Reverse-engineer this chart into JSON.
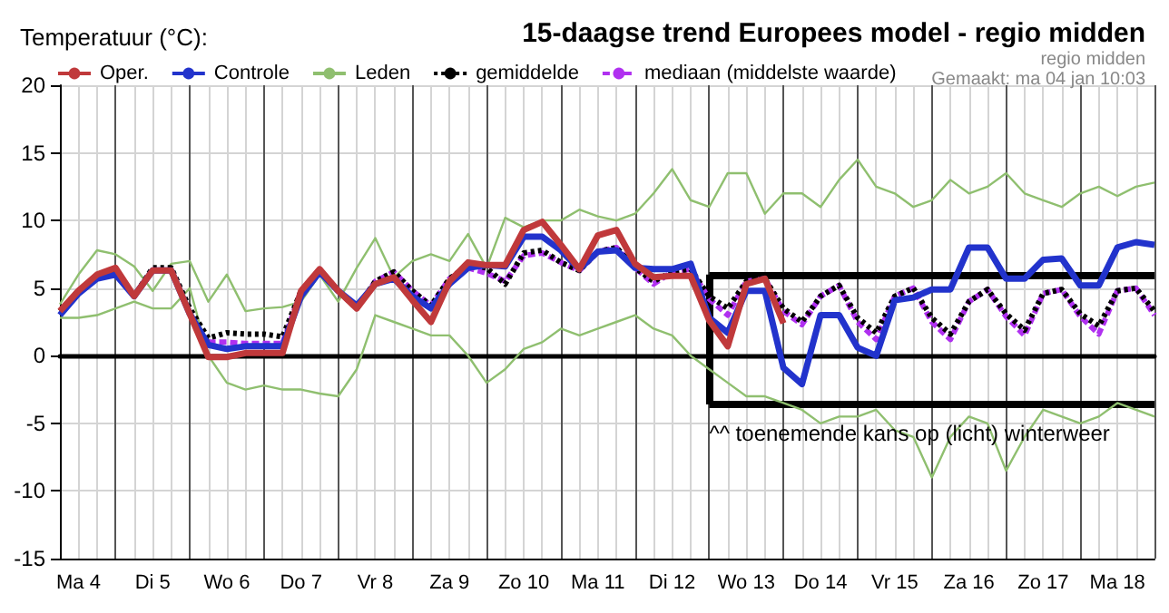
{
  "chart_data": {
    "type": "line",
    "title": "15-daagse trend Europees model - regio midden",
    "ylabel": "Temperatuur (°C):",
    "annotations": [
      "regio midden",
      "Gemaakt: ma 04 jan 10:03",
      {
        "text": "^^ toenemende kans op (licht) winterweer",
        "y": -3.6
      }
    ],
    "categories": [
      null,
      "Ma 4",
      null,
      null,
      null,
      "Di 5",
      null,
      null,
      null,
      "Wo 6",
      null,
      null,
      null,
      "Do 7",
      null,
      null,
      null,
      "Vr 8",
      null,
      null,
      null,
      "Za 9",
      null,
      null,
      null,
      "Zo 10",
      null,
      null,
      null,
      "Ma 11",
      null,
      null,
      null,
      "Di 12",
      null,
      null,
      null,
      "Wo 13",
      null,
      null,
      null,
      "Do 14",
      null,
      null,
      null,
      "Vr 15",
      null,
      null,
      null,
      "Za 16",
      null,
      null,
      null,
      "Zo 17",
      null,
      null,
      null,
      "Ma 18",
      null,
      null
    ],
    "ylim": [
      -15,
      20
    ],
    "yticks": [
      -15,
      -10,
      -5,
      0,
      5,
      10,
      15,
      20
    ],
    "grid": true,
    "legend": "top left",
    "marker": "none",
    "ref_lines": [
      {
        "axis": "y",
        "value": 6
      },
      {
        "axis": "y",
        "value": -3.6
      }
    ],
    "series": [
      {
        "name": "Oper.",
        "color": "#c0393b",
        "line_style": "solid",
        "values": [
          3.3,
          4.8,
          6.0,
          6.5,
          4.4,
          6.3,
          6.3,
          3.1,
          -0.1,
          -0.1,
          0.2,
          0.2,
          0.2,
          4.8,
          6.4,
          4.8,
          3.5,
          5.3,
          5.8,
          4.1,
          2.5,
          5.5,
          6.9,
          6.7,
          6.7,
          9.3,
          9.9,
          8.2,
          6.4,
          8.9,
          9.3,
          6.8,
          5.8,
          5.9,
          5.9,
          2.6,
          0.7,
          5.3,
          5.7,
          2.4,
          null,
          null,
          null,
          null,
          null,
          null,
          null,
          null,
          null,
          null,
          null,
          null,
          null,
          null,
          null,
          null,
          null,
          null,
          null,
          null
        ]
      },
      {
        "name": "Controle",
        "color": "#2233cc",
        "line_style": "solid",
        "values": [
          3.0,
          4.6,
          5.7,
          6.0,
          4.4,
          6.3,
          6.3,
          3.1,
          0.8,
          0.5,
          0.7,
          0.7,
          0.7,
          4.4,
          6.2,
          4.8,
          3.7,
          5.3,
          5.7,
          4.4,
          3.5,
          5.3,
          6.5,
          6.7,
          6.6,
          8.8,
          8.8,
          7.8,
          6.4,
          7.7,
          7.8,
          6.5,
          6.4,
          6.4,
          6.8,
          2.8,
          1.7,
          4.8,
          4.8,
          -0.9,
          -2.1,
          3.0,
          3.0,
          0.6,
          0.0,
          4.1,
          4.3,
          4.9,
          4.9,
          8.0,
          8.0,
          5.7,
          5.7,
          7.1,
          7.2,
          5.2,
          5.2,
          8.0,
          8.4,
          8.2
        ]
      },
      {
        "name": "Leden",
        "color": "#8fbf6f",
        "line_style": "solid",
        "values": [
          3.8,
          6.0,
          7.8,
          7.5,
          6.6,
          4.8,
          6.8,
          7.0,
          4.0,
          6.0,
          3.3,
          3.5,
          3.6,
          4.0,
          6.0,
          4.0,
          6.5,
          8.7,
          5.8,
          7.0,
          7.5,
          7.0,
          9.0,
          6.5,
          10.2,
          9.5,
          10.0,
          10.0,
          10.8,
          10.3,
          10.0,
          10.5,
          12.0,
          13.8,
          11.5,
          11.0,
          13.5,
          13.5,
          10.5,
          12.0,
          12.0,
          11.0,
          13.0,
          14.5,
          12.5,
          12.0,
          11.0,
          11.5,
          13.0,
          12.0,
          12.5,
          13.5,
          12.0,
          11.5,
          11.0,
          12.0,
          12.5,
          11.8,
          12.5,
          12.8
        ]
      },
      {
        "color": "#8fbf6f",
        "line_style": "solid",
        "values": [
          2.8,
          2.8,
          3.0,
          3.5,
          4.0,
          3.5,
          3.5,
          5.0,
          0.0,
          -2.0,
          -2.5,
          -2.2,
          -2.5,
          -2.5,
          -2.8,
          -3.0,
          -1.0,
          3.0,
          2.5,
          2.0,
          1.5,
          1.5,
          0.0,
          -2.0,
          -1.0,
          0.5,
          1.0,
          2.0,
          1.5,
          2.0,
          2.5,
          3.0,
          2.0,
          1.5,
          0.0,
          -1.0,
          -2.0,
          -3.0,
          -3.0,
          -3.5,
          -4.0,
          -5.0,
          -4.5,
          -4.5,
          -4.0,
          -5.5,
          -6.0,
          -9.0,
          -6.0,
          -4.5,
          -5.0,
          -8.5,
          -6.0,
          -4.0,
          -4.5,
          -5.0,
          -4.5,
          -3.5,
          -4.0,
          -4.5
        ]
      },
      {
        "name": "gemiddelde",
        "color": "#000000",
        "line_style": "dotted",
        "values": [
          3.3,
          4.8,
          5.8,
          6.4,
          4.4,
          6.5,
          6.5,
          3.5,
          1.3,
          1.7,
          1.6,
          1.6,
          1.4,
          4.8,
          6.4,
          4.8,
          3.5,
          5.5,
          6.2,
          4.8,
          3.7,
          5.7,
          6.7,
          6.5,
          5.3,
          7.6,
          7.8,
          6.9,
          6.3,
          7.7,
          8.0,
          6.5,
          5.5,
          6.2,
          6.4,
          4.4,
          3.5,
          5.5,
          5.7,
          3.5,
          2.5,
          4.4,
          5.2,
          2.8,
          1.7,
          4.4,
          5.0,
          2.8,
          1.6,
          4.0,
          4.9,
          3.1,
          1.9,
          4.6,
          4.9,
          3.1,
          2.2,
          4.8,
          5.0,
          3.3
        ]
      },
      {
        "name": "mediaan (middelste waarde)",
        "color": "#b030f0",
        "line_style": "dashed",
        "values": [
          null,
          null,
          null,
          null,
          null,
          null,
          null,
          null,
          1.0,
          1.0,
          0.9,
          0.9,
          0.9,
          4.8,
          6.4,
          4.8,
          3.5,
          5.5,
          6.2,
          4.8,
          3.7,
          5.7,
          6.5,
          6.1,
          5.5,
          7.4,
          7.6,
          6.9,
          6.3,
          7.7,
          8.0,
          6.5,
          5.3,
          6.2,
          6.4,
          4.2,
          3.0,
          5.5,
          5.7,
          3.3,
          2.3,
          4.4,
          5.2,
          2.5,
          1.2,
          4.4,
          5.0,
          2.5,
          1.2,
          4.0,
          4.9,
          2.9,
          1.5,
          4.6,
          4.9,
          2.9,
          1.6,
          4.8,
          5.0,
          3.0
        ]
      }
    ]
  }
}
